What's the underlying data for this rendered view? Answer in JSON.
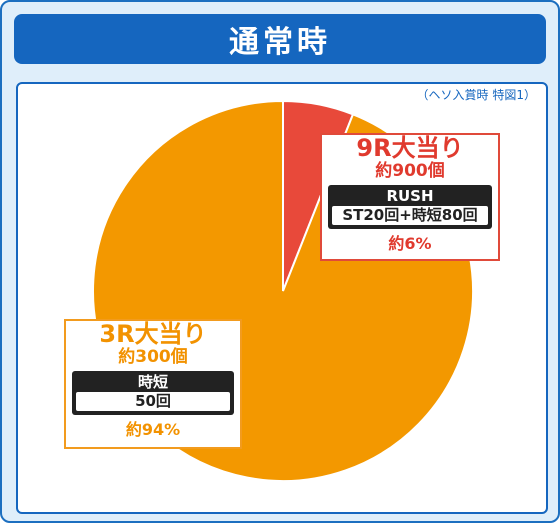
{
  "header": {
    "title": "通常時"
  },
  "note": "（ヘソ入賞時 特図1）",
  "colors": {
    "frame": "#1566bf",
    "slice_9r": "#e8493a",
    "slice_3r": "#f39800",
    "background": "#dfeefa"
  },
  "chart_data": {
    "type": "pie",
    "title": "通常時",
    "subtitle": "（ヘソ入賞時 特図1）",
    "slices": [
      {
        "name": "9R大当り",
        "value": 6,
        "color": "#e8493a"
      },
      {
        "name": "3R大当り",
        "value": 94,
        "color": "#f39800"
      }
    ],
    "start_angle_deg": 0,
    "direction": "clockwise"
  },
  "callouts": {
    "r9": {
      "title": "9R大当り",
      "payout": "約900個",
      "badge_label": "RUSH",
      "badge_value": "ST20回+時短80回",
      "percent": "約6%"
    },
    "r3": {
      "title": "3R大当り",
      "payout": "約300個",
      "badge_label": "時短",
      "badge_value": "50回",
      "percent": "約94%"
    }
  }
}
